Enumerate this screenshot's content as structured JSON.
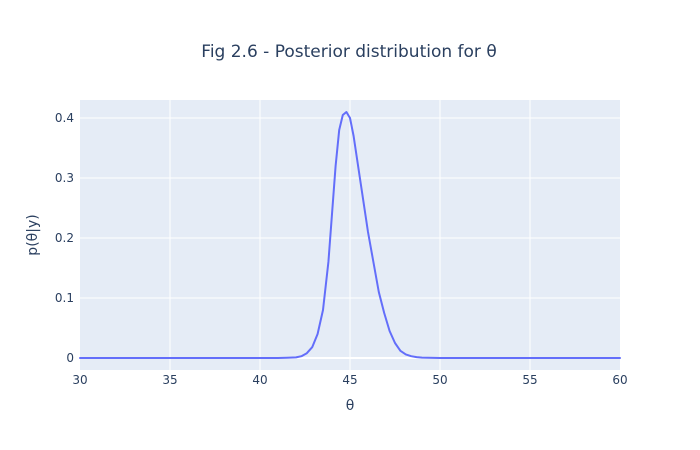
{
  "chart_data": {
    "type": "line",
    "title": "Fig 2.6 - Posterior distribution for θ",
    "xlabel": "θ",
    "ylabel": "p(θ|y)",
    "xlim": [
      30,
      60
    ],
    "ylim": [
      -0.02,
      0.43
    ],
    "x_ticks": [
      "30",
      "35",
      "40",
      "45",
      "50",
      "55",
      "60"
    ],
    "y_ticks": [
      "0",
      "0.1",
      "0.2",
      "0.3",
      "0.4"
    ],
    "grid": true,
    "legend": "none",
    "series": [
      {
        "color": "#636efa",
        "x": [
          30,
          32,
          34,
          36,
          38,
          40,
          41,
          41.5,
          42,
          42.3,
          42.6,
          42.9,
          43.2,
          43.5,
          43.8,
          44.0,
          44.2,
          44.4,
          44.6,
          44.8,
          45.0,
          45.2,
          45.4,
          45.6,
          45.8,
          46.0,
          46.3,
          46.6,
          46.9,
          47.2,
          47.5,
          47.8,
          48.1,
          48.4,
          48.7,
          49.0,
          50,
          52,
          54,
          56,
          58,
          60
        ],
        "y": [
          0,
          0,
          0,
          0,
          0,
          0,
          0,
          0.0005,
          0.001,
          0.003,
          0.008,
          0.018,
          0.04,
          0.08,
          0.16,
          0.24,
          0.32,
          0.38,
          0.405,
          0.41,
          0.4,
          0.37,
          0.33,
          0.29,
          0.25,
          0.21,
          0.16,
          0.11,
          0.075,
          0.045,
          0.025,
          0.012,
          0.006,
          0.003,
          0.0015,
          0.0007,
          0,
          0,
          0,
          0,
          0,
          0
        ]
      }
    ]
  }
}
